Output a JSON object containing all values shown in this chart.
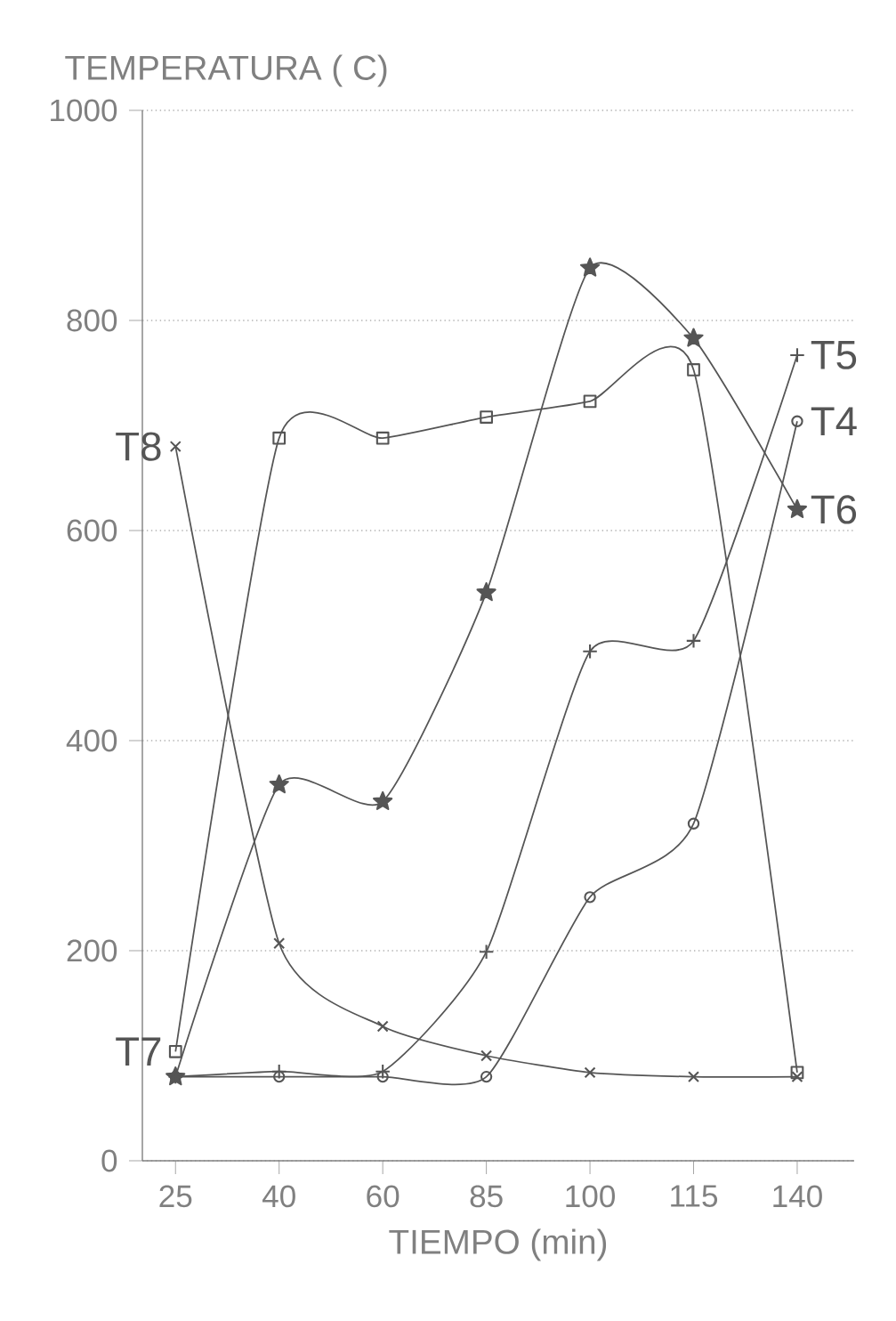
{
  "chart_data": {
    "type": "line",
    "xlabel": "TIEMPO (min)",
    "ylabel": "TEMPERATURA ( C)",
    "categories": [
      "25",
      "40",
      "60",
      "85",
      "100",
      "115",
      "140"
    ],
    "series": [
      {
        "name": "T4",
        "color": "#555555",
        "marker": "circle",
        "values": [
          80,
          80,
          80,
          80,
          251,
          321,
          704
        ]
      },
      {
        "name": "T5",
        "color": "#555555",
        "marker": "plus",
        "values": [
          80,
          85,
          85,
          199,
          485,
          495,
          767
        ]
      },
      {
        "name": "T6",
        "color": "#555555",
        "marker": "star",
        "values": [
          80,
          358,
          342,
          541,
          850,
          783,
          620
        ]
      },
      {
        "name": "T7",
        "color": "#555555",
        "marker": "square",
        "values": [
          104,
          688,
          688,
          708,
          723,
          753,
          84
        ]
      },
      {
        "name": "T8",
        "color": "#555555",
        "marker": "cross",
        "values": [
          680,
          207,
          128,
          100,
          84,
          80,
          80
        ]
      }
    ],
    "ylim": [
      0,
      1000
    ],
    "yticks": [
      0,
      200,
      400,
      600,
      800,
      1000
    ],
    "grid": "y",
    "line_style": "solid"
  }
}
